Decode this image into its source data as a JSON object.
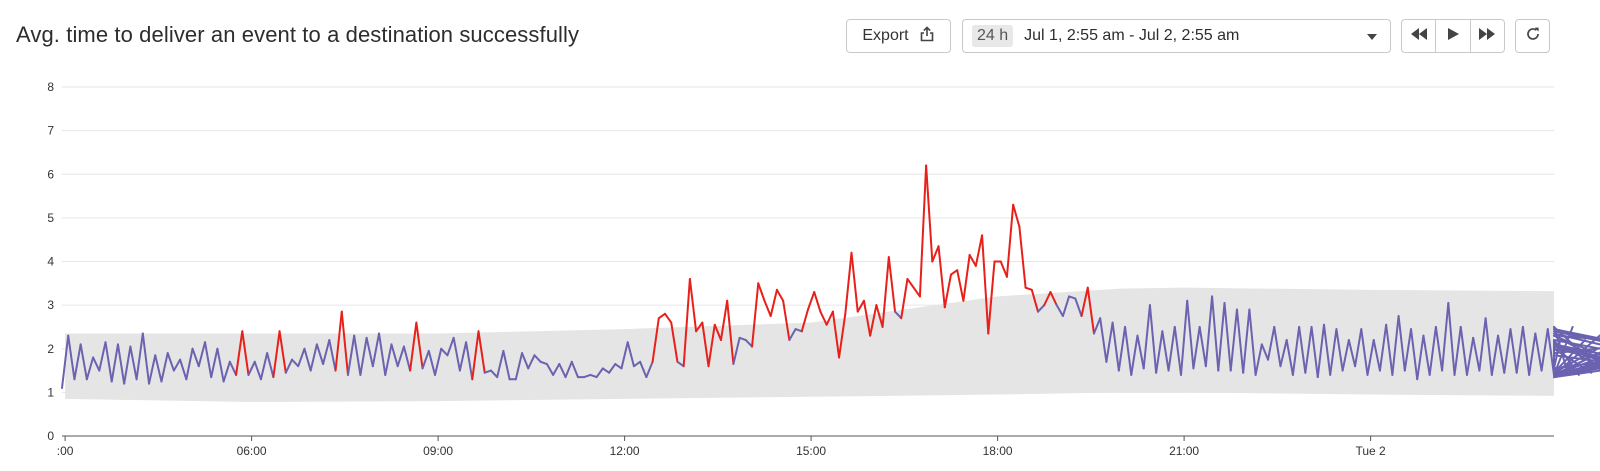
{
  "header": {
    "title": "Avg. time to deliver an event to a destination successfully",
    "export_label": "Export",
    "range_badge": "24 h",
    "range_text": "Jul 1, 2:55 am - Jul 2, 2:55 am"
  },
  "icons": {
    "export": "share-upload-icon",
    "caret": "chevron-down-icon",
    "rewind": "rewind-icon",
    "play": "play-icon",
    "forward": "fast-forward-icon",
    "refresh": "refresh-icon"
  },
  "colors": {
    "normal_series": "#6b62b0",
    "anomaly_series": "#e8201a",
    "band": "#e5e5e5",
    "grid": "#e6e6e6"
  },
  "chart_data": {
    "type": "line",
    "title": "Avg. time to deliver an event to a destination successfully",
    "xlabel": "",
    "ylabel": "",
    "ylim": [
      0,
      8
    ],
    "yticks": [
      0,
      1,
      2,
      3,
      4,
      5,
      6,
      7,
      8
    ],
    "xlim_hours": [
      2.95,
      26.95
    ],
    "xticks": [
      {
        "label": ":00",
        "hour": 3
      },
      {
        "label": "06:00",
        "hour": 6
      },
      {
        "label": "09:00",
        "hour": 9
      },
      {
        "label": "12:00",
        "hour": 12
      },
      {
        "label": "15:00",
        "hour": 15
      },
      {
        "label": "18:00",
        "hour": 18
      },
      {
        "label": "21:00",
        "hour": 21
      },
      {
        "label": "Tue 2",
        "hour": 24
      }
    ],
    "grid": true,
    "legend": "none",
    "band": {
      "hours": [
        3,
        6,
        9,
        12,
        15,
        18,
        20,
        21,
        24,
        27
      ],
      "upper": [
        2.35,
        2.35,
        2.35,
        2.45,
        2.6,
        3.2,
        3.38,
        3.4,
        3.35,
        3.32
      ],
      "lower": [
        0.85,
        0.78,
        0.8,
        0.85,
        0.9,
        0.95,
        1.0,
        1.0,
        0.95,
        0.92
      ]
    },
    "series": [
      {
        "start_hour": 2.95,
        "step_hours": 0.1,
        "values": [
          1.1,
          2.3,
          1.3,
          2.1,
          1.3,
          1.8,
          1.5,
          2.15,
          1.25,
          2.1,
          1.2,
          2.05,
          1.3,
          2.35,
          1.2,
          1.85,
          1.25,
          1.9,
          1.5,
          1.75,
          1.3,
          2.0,
          1.6,
          2.15,
          1.35,
          2.0,
          1.25,
          1.7,
          1.4,
          2.4,
          1.4,
          1.7,
          1.3,
          1.9,
          1.35,
          2.4,
          1.45,
          1.75,
          1.6,
          2.0,
          1.5,
          2.1,
          1.65,
          2.2,
          1.5,
          2.85,
          1.4,
          2.3,
          1.4,
          2.25,
          1.6,
          2.35,
          1.4,
          2.1,
          1.6,
          2.05,
          1.5,
          2.6,
          1.55,
          1.95,
          1.4,
          2.0,
          1.85,
          2.25,
          1.5,
          2.15,
          1.3,
          2.4,
          1.45,
          1.5,
          1.35,
          1.95,
          1.3,
          1.3,
          1.9,
          1.55,
          1.85,
          1.7,
          1.65,
          1.4,
          1.65,
          1.35,
          1.7,
          1.35,
          1.35,
          1.4,
          1.35,
          1.55,
          1.45,
          1.65,
          1.55,
          2.15,
          1.6,
          1.7,
          1.35,
          1.7,
          2.7,
          2.8,
          2.6,
          1.7,
          1.6,
          3.6,
          2.4,
          2.6,
          1.6,
          2.55,
          2.2,
          3.1,
          1.65,
          2.25,
          2.2,
          2.05,
          3.5,
          3.1,
          2.75,
          3.35,
          3.1,
          2.2,
          2.45,
          2.4,
          2.9,
          3.3,
          2.85,
          2.55,
          2.85,
          1.8,
          2.8,
          4.2,
          2.85,
          3.1,
          2.3,
          3.0,
          2.5,
          4.1,
          2.85,
          2.7,
          3.6,
          3.4,
          3.2,
          6.2,
          4.0,
          4.35,
          2.95,
          3.7,
          3.8,
          3.1,
          4.15,
          3.9,
          4.6,
          2.35,
          4.0,
          4.0,
          3.65,
          5.3,
          4.8,
          3.4,
          3.35,
          2.85,
          3.0,
          3.3,
          3.0,
          2.75,
          3.2,
          3.15,
          2.75,
          3.4,
          2.35,
          2.7,
          1.7,
          2.6,
          1.5,
          2.5,
          1.4,
          2.3,
          1.55,
          3.0,
          1.45,
          2.4,
          1.5,
          2.5,
          1.4,
          3.1,
          1.55,
          2.5,
          1.6,
          3.2,
          1.5,
          3.05,
          1.5,
          2.9,
          1.45,
          2.9,
          1.4,
          2.1,
          1.75,
          2.5,
          1.6,
          2.2,
          1.4,
          2.5,
          1.45,
          2.5,
          1.35,
          2.55,
          1.4,
          2.45,
          1.5,
          2.2,
          1.6,
          2.45,
          1.4,
          2.2,
          1.5,
          2.55,
          1.4,
          2.75,
          1.5,
          2.45,
          1.3,
          2.3,
          1.4,
          2.5,
          1.5,
          3.05,
          1.4,
          2.5,
          1.4,
          2.25,
          1.5,
          2.7,
          1.4,
          2.3,
          1.45,
          2.45,
          1.45,
          2.5,
          1.4,
          2.35,
          1.5,
          2.45,
          1.4,
          2.2,
          1.55,
          2.5,
          1.4,
          2.2,
          1.45,
          2.0,
          1.45,
          2.5,
          1.4,
          2.15,
          1.4,
          2.3,
          1.4,
          2.1,
          1.35,
          2.3,
          1.4,
          2.1,
          1.4,
          2.05,
          1.35,
          2.0,
          1.4,
          1.85,
          1.35,
          2.1,
          1.4,
          2.35,
          1.4,
          2.2,
          1.35,
          2.45,
          1.4,
          2.4,
          1.4,
          2.45,
          1.9,
          2.3,
          1.55
        ]
      }
    ]
  }
}
